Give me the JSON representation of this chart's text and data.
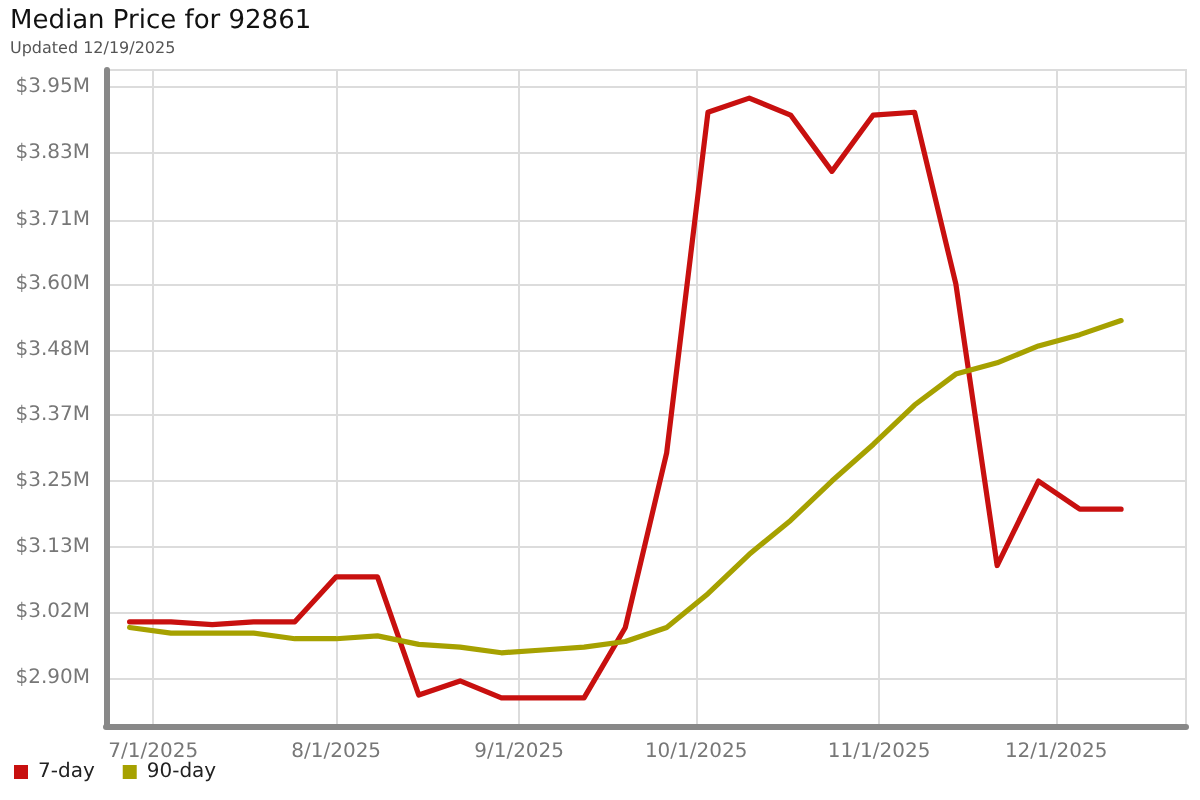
{
  "chart_data": {
    "type": "line",
    "title": "Median Price for 92861",
    "subtitle": "Updated 12/19/2025",
    "x": [
      "2025-06-27",
      "2025-07-04",
      "2025-07-11",
      "2025-07-18",
      "2025-07-25",
      "2025-08-01",
      "2025-08-08",
      "2025-08-15",
      "2025-08-22",
      "2025-08-29",
      "2025-09-05",
      "2025-09-12",
      "2025-09-19",
      "2025-09-26",
      "2025-10-03",
      "2025-10-10",
      "2025-10-17",
      "2025-10-24",
      "2025-10-31",
      "2025-11-07",
      "2025-11-14",
      "2025-11-21",
      "2025-11-28",
      "2025-12-05",
      "2025-12-12"
    ],
    "series": [
      {
        "name": "7-day",
        "color": "#c8100f",
        "values": [
          3.0,
          3.0,
          2.995,
          3.0,
          3.0,
          3.08,
          3.08,
          2.87,
          2.895,
          2.865,
          2.865,
          2.865,
          2.99,
          3.3,
          3.905,
          3.93,
          3.9,
          3.8,
          3.9,
          3.905,
          3.6,
          3.1,
          3.25,
          3.2,
          3.2
        ]
      },
      {
        "name": "90-day",
        "color": "#a6a100",
        "values": [
          2.99,
          2.98,
          2.98,
          2.98,
          2.97,
          2.97,
          2.975,
          2.96,
          2.955,
          2.945,
          2.95,
          2.955,
          2.965,
          2.99,
          3.05,
          3.12,
          3.18,
          3.25,
          3.315,
          3.385,
          3.44,
          3.46,
          3.49,
          3.51,
          3.535
        ]
      }
    ],
    "xlim": [
      "2025-06-23",
      "2025-12-23"
    ],
    "xticks": [
      {
        "value": "2025-07-01",
        "label": "7/1/2025"
      },
      {
        "value": "2025-08-01",
        "label": "8/1/2025"
      },
      {
        "value": "2025-09-01",
        "label": "9/1/2025"
      },
      {
        "value": "2025-10-01",
        "label": "10/1/2025"
      },
      {
        "value": "2025-11-01",
        "label": "11/1/2025"
      },
      {
        "value": "2025-12-01",
        "label": "12/1/2025"
      }
    ],
    "ylim": [
      2.815,
      3.98
    ],
    "yticks": [
      {
        "value": 2.9,
        "label": "$2.90M"
      },
      {
        "value": 3.0167,
        "label": "$3.02M"
      },
      {
        "value": 3.1333,
        "label": "$3.13M"
      },
      {
        "value": 3.25,
        "label": "$3.25M"
      },
      {
        "value": 3.3667,
        "label": "$3.37M"
      },
      {
        "value": 3.4833,
        "label": "$3.48M"
      },
      {
        "value": 3.6,
        "label": "$3.60M"
      },
      {
        "value": 3.714,
        "label": "$3.71M"
      },
      {
        "value": 3.8333,
        "label": "$3.83M"
      },
      {
        "value": 3.95,
        "label": "$3.95M"
      }
    ],
    "grid": true,
    "legend": "bottom left",
    "marker": "none"
  }
}
